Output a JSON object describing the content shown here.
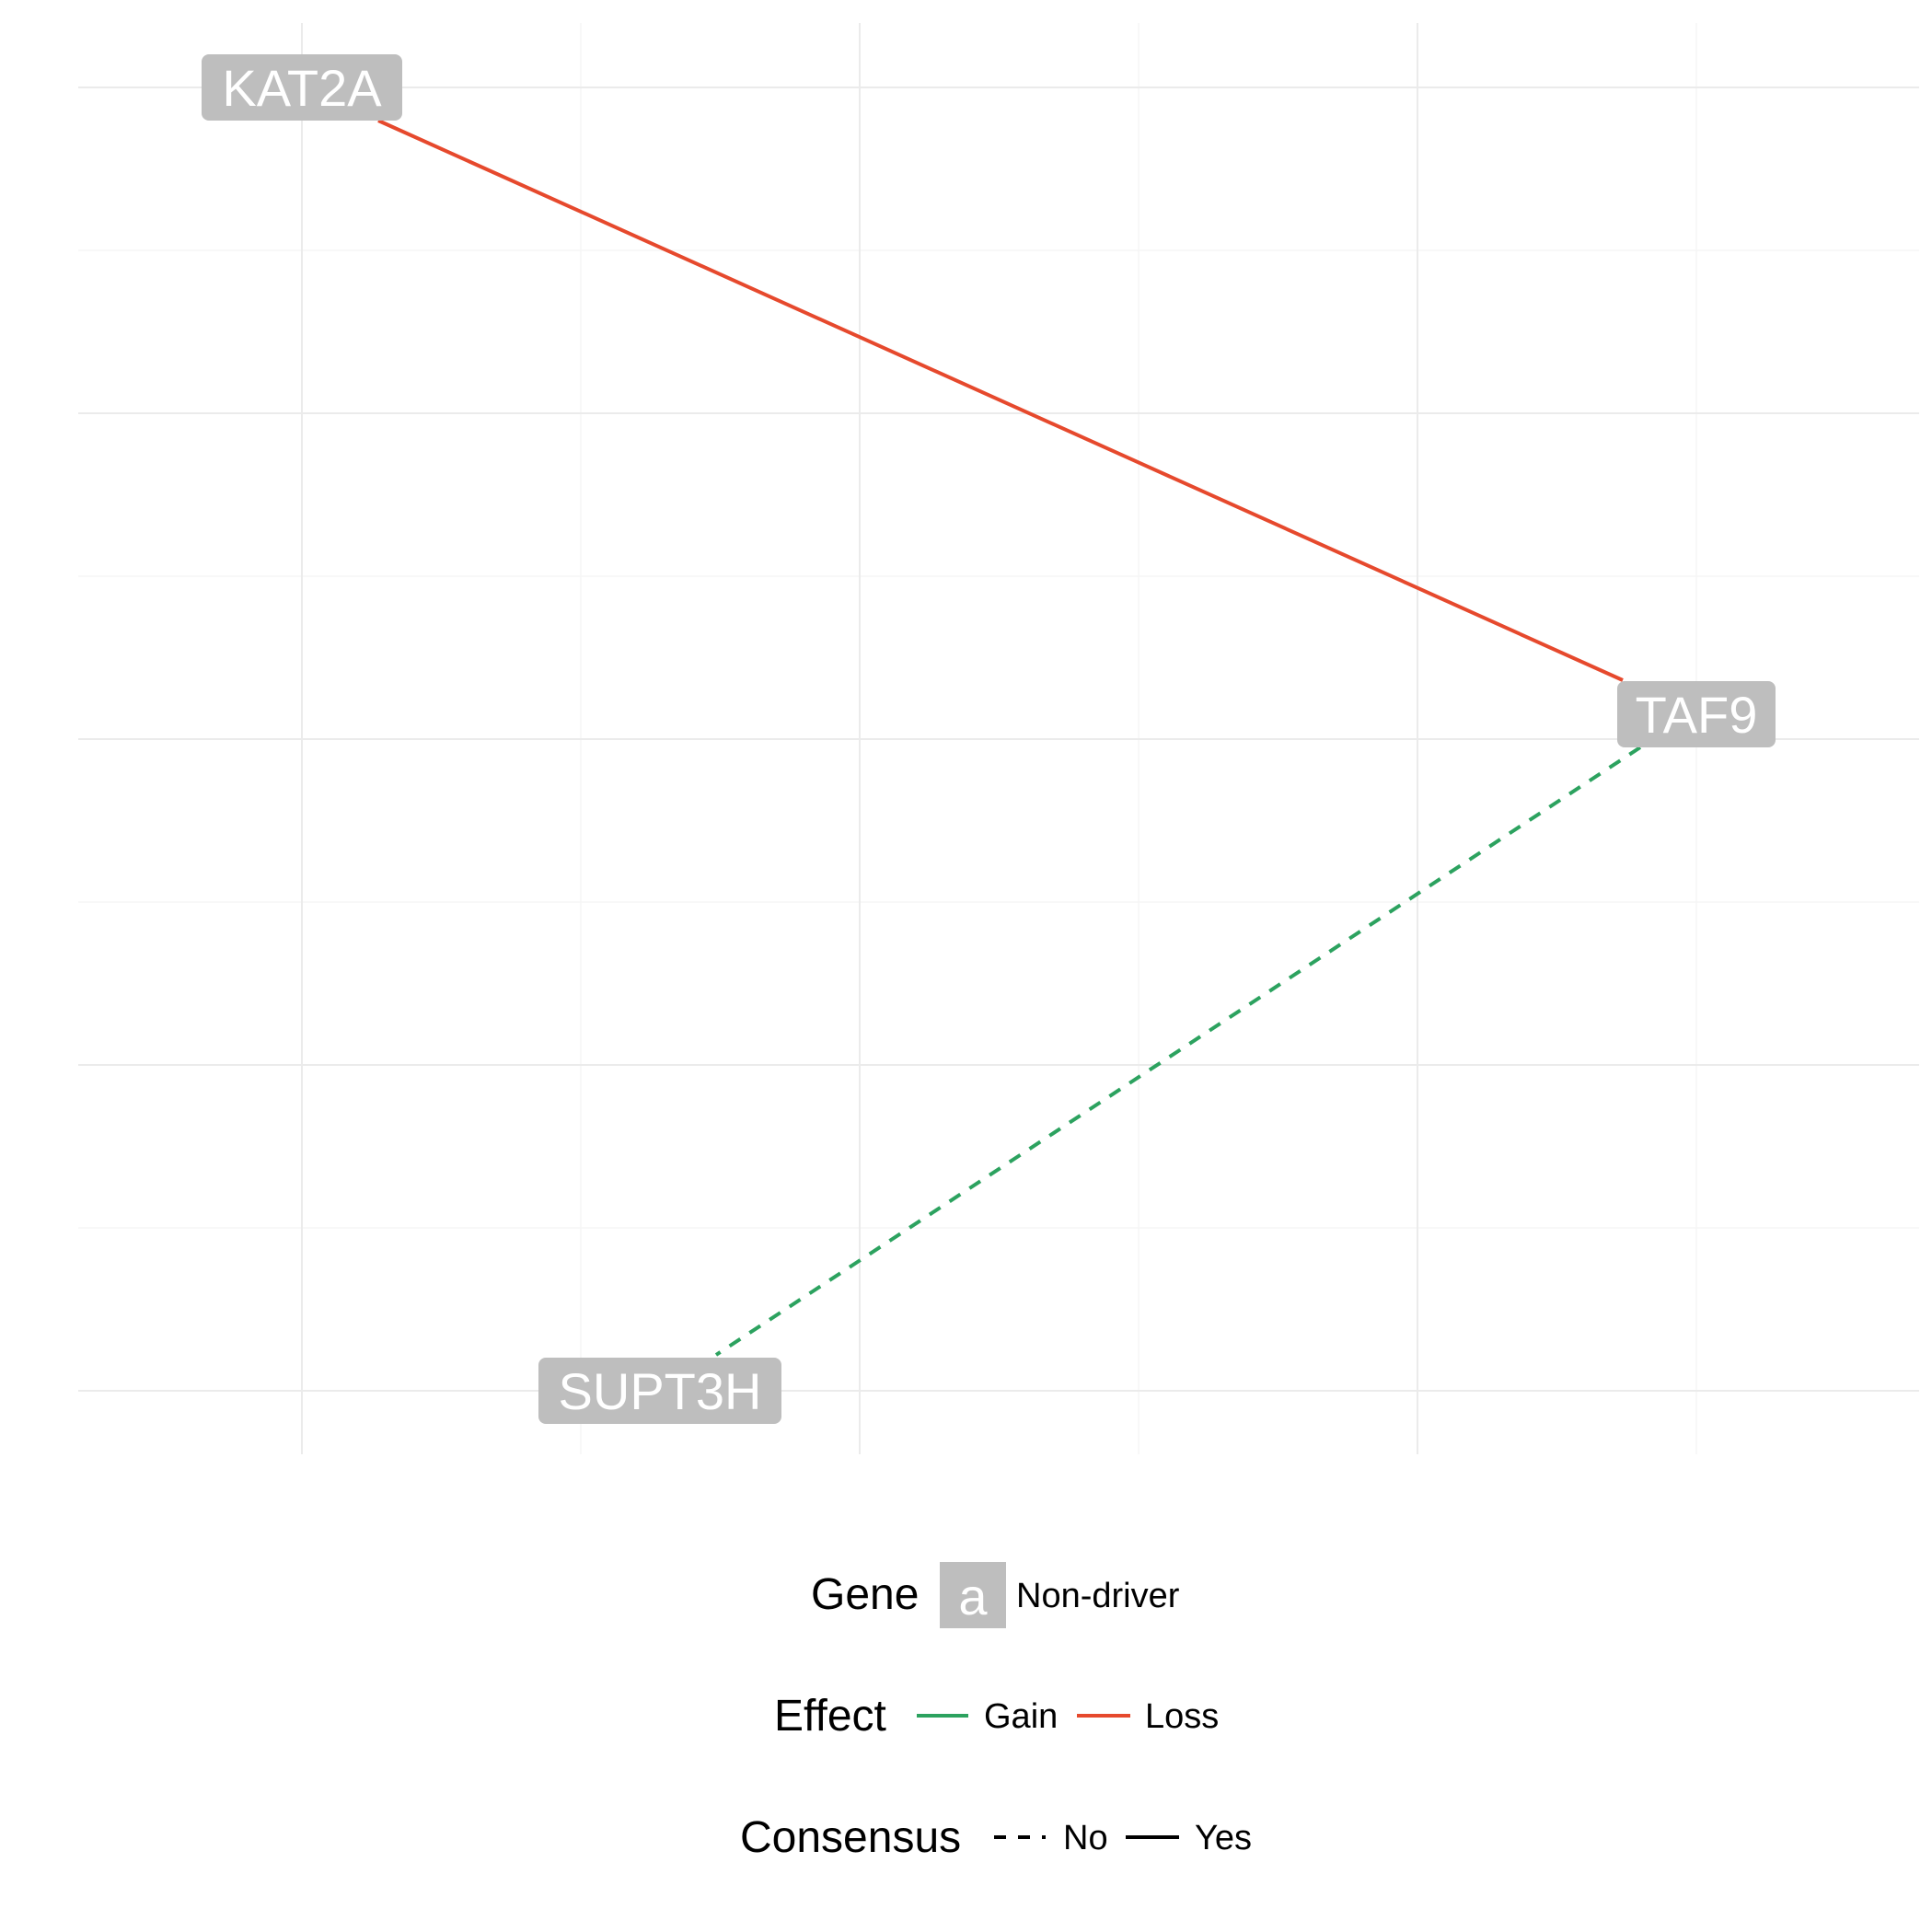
{
  "colors": {
    "background": "#ffffff",
    "grid_major": "#ebebeb",
    "grid_minor": "#f5f5f5",
    "node_fill": "#bebebe",
    "node_text": "#ffffff",
    "gain": "#2ca25f",
    "loss": "#e6492d",
    "legend_text": "#000000"
  },
  "network": {
    "nodes": [
      {
        "id": "KAT2A",
        "label": "KAT2A",
        "gene": "Non-driver"
      },
      {
        "id": "TAF9",
        "label": "TAF9",
        "gene": "Non-driver"
      },
      {
        "id": "SUPT3H",
        "label": "SUPT3H",
        "gene": "Non-driver"
      }
    ],
    "edges": [
      {
        "from": "KAT2A",
        "to": "TAF9",
        "effect": "Loss",
        "consensus": "Yes"
      },
      {
        "from": "TAF9",
        "to": "SUPT3H",
        "effect": "Gain",
        "consensus": "No"
      }
    ]
  },
  "legend": {
    "gene": {
      "title": "Gene",
      "key_glyph": "a",
      "items": [
        "Non-driver"
      ]
    },
    "effect": {
      "title": "Effect",
      "items": [
        "Gain",
        "Loss"
      ]
    },
    "consensus": {
      "title": "Consensus",
      "items": [
        "No",
        "Yes"
      ]
    }
  }
}
